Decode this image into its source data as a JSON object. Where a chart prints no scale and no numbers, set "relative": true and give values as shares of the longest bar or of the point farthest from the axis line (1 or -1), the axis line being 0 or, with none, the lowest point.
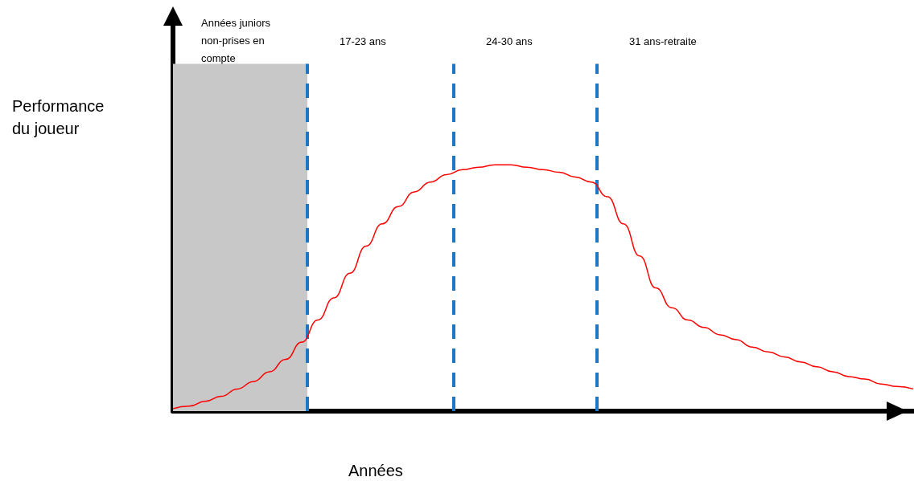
{
  "chart_data": {
    "type": "line",
    "relative": true,
    "xlabel": "Années",
    "ylabel": "Performance du joueur",
    "categories": [
      null,
      null,
      null,
      null,
      null,
      null,
      null,
      null,
      null,
      null,
      null,
      null,
      null,
      null,
      null,
      null,
      null,
      null,
      null,
      null,
      null,
      null,
      null,
      null,
      null,
      null,
      null,
      null,
      null,
      null,
      null,
      null,
      null,
      null,
      null,
      null,
      null,
      null,
      null,
      null,
      null,
      null,
      null,
      null,
      null,
      null,
      null
    ],
    "series": [
      {
        "color": "#ff0000",
        "values": [
          0.01,
          0.02,
          0.04,
          0.06,
          0.09,
          0.12,
          0.16,
          0.21,
          0.28,
          0.37,
          0.46,
          0.56,
          0.67,
          0.76,
          0.83,
          0.89,
          0.93,
          0.96,
          0.98,
          0.99,
          1,
          1,
          0.99,
          0.98,
          0.97,
          0.95,
          0.93,
          0.87,
          0.76,
          0.63,
          0.5,
          0.42,
          0.37,
          0.34,
          0.31,
          0.29,
          0.26,
          0.24,
          0.22,
          0.2,
          0.18,
          0.16,
          0.14,
          0.13,
          0.11,
          0.1,
          0.09
        ]
      }
    ],
    "annotations": [
      "Années juniors non-prises en compte",
      "17-23 ans",
      "24-30 ans",
      "31 ans-retraite"
    ],
    "marker": "none",
    "grid": false
  }
}
